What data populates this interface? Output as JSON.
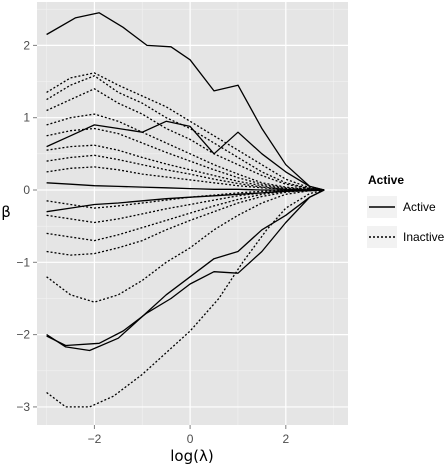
{
  "chart_data": {
    "type": "line",
    "xlabel": "log(λ)",
    "ylabel": "β",
    "xlim": [
      -3.2,
      3.3
    ],
    "ylim": [
      -3.25,
      2.6
    ],
    "x_ticks": [
      -2,
      0,
      2
    ],
    "x_tick_labels": [
      "−2",
      "0",
      "2"
    ],
    "y_ticks": [
      -3,
      -2,
      -1,
      0,
      1,
      2
    ],
    "y_tick_labels": [
      "−3",
      "−2",
      "−1",
      "0",
      "1",
      "2"
    ],
    "grid": true,
    "background": "#e5e5e5",
    "gridline_color": "#ffffff",
    "legend": {
      "title": "Active",
      "position": "right",
      "entries": [
        {
          "label": "Active",
          "linetype": "solid"
        },
        {
          "label": "Inactive",
          "linetype": "dotted"
        }
      ]
    },
    "series": [
      {
        "group": "Active",
        "x": [
          -3,
          -2.4,
          -1.9,
          -1.4,
          -0.9,
          -0.4,
          0,
          0.5,
          1,
          1.5,
          2,
          2.5,
          2.8
        ],
        "values": [
          2.15,
          2.38,
          2.45,
          2.25,
          2.0,
          1.98,
          1.8,
          1.37,
          1.45,
          0.85,
          0.35,
          0.05,
          0
        ]
      },
      {
        "group": "Active",
        "x": [
          -3,
          -2.5,
          -2,
          -1.5,
          -1,
          -0.5,
          0,
          0.5,
          1,
          1.5,
          2,
          2.5,
          2.8
        ],
        "values": [
          0.6,
          0.75,
          0.9,
          0.85,
          0.8,
          0.95,
          0.88,
          0.5,
          0.8,
          0.5,
          0.25,
          0.05,
          0
        ]
      },
      {
        "group": "Active",
        "x": [
          -3,
          -2.5,
          -2,
          -1.5,
          -1,
          -0.5,
          0,
          0.5,
          1,
          1.5,
          2,
          2.5,
          2.8
        ],
        "values": [
          -0.3,
          -0.25,
          -0.2,
          -0.18,
          -0.15,
          -0.12,
          -0.1,
          -0.08,
          -0.06,
          -0.04,
          -0.02,
          -0.01,
          0
        ]
      },
      {
        "group": "Active",
        "x": [
          -3,
          -2.5,
          -2,
          -1.5,
          -1,
          -0.5,
          0,
          0.5,
          1,
          1.5,
          2,
          2.5,
          2.8
        ],
        "values": [
          0.1,
          0.08,
          0.06,
          0.05,
          0.04,
          0.03,
          0.02,
          0.01,
          0.01,
          0.0,
          0.0,
          0.0,
          0
        ]
      },
      {
        "group": "Active",
        "x": [
          -3,
          -2.6,
          -2.1,
          -1.5,
          -1,
          -0.5,
          0,
          0.5,
          1,
          1.5,
          2,
          2.5,
          2.8
        ],
        "values": [
          -2.0,
          -2.17,
          -2.22,
          -2.05,
          -1.75,
          -1.45,
          -1.2,
          -0.95,
          -0.85,
          -0.55,
          -0.35,
          -0.1,
          0
        ]
      },
      {
        "group": "Active",
        "x": [
          -3,
          -2.6,
          -1.9,
          -1.4,
          -0.9,
          -0.4,
          0,
          0.5,
          1,
          1.5,
          2,
          2.5,
          2.8
        ],
        "values": [
          -2.02,
          -2.15,
          -2.12,
          -1.95,
          -1.7,
          -1.5,
          -1.3,
          -1.13,
          -1.15,
          -0.85,
          -0.45,
          -0.1,
          0
        ]
      },
      {
        "group": "Inactive",
        "x": [
          -3,
          -2.5,
          -2,
          -1.5,
          -1,
          -0.5,
          0,
          0.5,
          1,
          1.5,
          2,
          2.5,
          2.8
        ],
        "values": [
          1.35,
          1.55,
          1.62,
          1.45,
          1.3,
          1.15,
          0.95,
          0.75,
          0.55,
          0.35,
          0.15,
          0.03,
          0
        ]
      },
      {
        "group": "Inactive",
        "x": [
          -3,
          -2.5,
          -2,
          -1.5,
          -1,
          -0.5,
          0,
          0.5,
          1,
          1.5,
          2,
          2.5,
          2.8
        ],
        "values": [
          1.25,
          1.45,
          1.58,
          1.35,
          1.2,
          1.0,
          0.85,
          0.65,
          0.45,
          0.25,
          0.1,
          0.02,
          0
        ]
      },
      {
        "group": "Inactive",
        "x": [
          -3,
          -2.5,
          -2,
          -1.5,
          -1,
          -0.5,
          0,
          0.5,
          1,
          1.5,
          2,
          2.5,
          2.8
        ],
        "values": [
          1.1,
          1.25,
          1.4,
          1.2,
          1.05,
          0.85,
          0.7,
          0.5,
          0.35,
          0.2,
          0.08,
          0.02,
          0
        ]
      },
      {
        "group": "Inactive",
        "x": [
          -3,
          -2.5,
          -2,
          -1.5,
          -1,
          -0.5,
          0,
          0.5,
          1,
          1.5,
          2,
          2.5,
          2.8
        ],
        "values": [
          0.9,
          1.0,
          1.05,
          0.95,
          0.8,
          0.65,
          0.5,
          0.35,
          0.22,
          0.1,
          0.04,
          0.01,
          0
        ]
      },
      {
        "group": "Inactive",
        "x": [
          -3,
          -2.5,
          -2,
          -1.5,
          -1,
          -0.5,
          0,
          0.5,
          1,
          1.5,
          2,
          2.5,
          2.8
        ],
        "values": [
          0.75,
          0.82,
          0.85,
          0.78,
          0.65,
          0.52,
          0.4,
          0.28,
          0.17,
          0.08,
          0.03,
          0.01,
          0
        ]
      },
      {
        "group": "Inactive",
        "x": [
          -3,
          -2.5,
          -2,
          -1.5,
          -1,
          -0.5,
          0,
          0.5,
          1,
          1.5,
          2,
          2.5,
          2.8
        ],
        "values": [
          0.55,
          0.6,
          0.62,
          0.55,
          0.45,
          0.36,
          0.28,
          0.2,
          0.12,
          0.06,
          0.02,
          0.0,
          0
        ]
      },
      {
        "group": "Inactive",
        "x": [
          -3,
          -2.5,
          -2,
          -1.5,
          -1,
          -0.5,
          0,
          0.5,
          1,
          1.5,
          2,
          2.5,
          2.8
        ],
        "values": [
          0.4,
          0.45,
          0.48,
          0.42,
          0.35,
          0.28,
          0.22,
          0.15,
          0.09,
          0.04,
          0.01,
          0.0,
          0
        ]
      },
      {
        "group": "Inactive",
        "x": [
          -3,
          -2.5,
          -2,
          -1.5,
          -1,
          -0.5,
          0,
          0.5,
          1,
          1.5,
          2,
          2.5,
          2.8
        ],
        "values": [
          0.25,
          0.3,
          0.32,
          0.28,
          0.22,
          0.18,
          0.14,
          0.1,
          0.06,
          0.03,
          0.01,
          0.0,
          0
        ]
      },
      {
        "group": "Inactive",
        "x": [
          -3,
          -2.5,
          -2,
          -1.5,
          -1,
          -0.5,
          0,
          0.5,
          1,
          1.5,
          2,
          2.5,
          2.8
        ],
        "values": [
          -0.15,
          -0.2,
          -0.25,
          -0.22,
          -0.18,
          -0.14,
          -0.1,
          -0.07,
          -0.04,
          -0.02,
          -0.01,
          0.0,
          0
        ]
      },
      {
        "group": "Inactive",
        "x": [
          -3,
          -2.5,
          -2,
          -1.5,
          -1,
          -0.5,
          0,
          0.5,
          1,
          1.5,
          2,
          2.5,
          2.8
        ],
        "values": [
          -0.35,
          -0.4,
          -0.45,
          -0.4,
          -0.33,
          -0.26,
          -0.2,
          -0.14,
          -0.08,
          -0.04,
          -0.01,
          0.0,
          0
        ]
      },
      {
        "group": "Inactive",
        "x": [
          -3,
          -2.5,
          -2,
          -1.5,
          -1,
          -0.5,
          0,
          0.5,
          1,
          1.5,
          2,
          2.5,
          2.8
        ],
        "values": [
          -0.6,
          -0.65,
          -0.7,
          -0.62,
          -0.52,
          -0.42,
          -0.32,
          -0.22,
          -0.13,
          -0.06,
          -0.02,
          0.0,
          0
        ]
      },
      {
        "group": "Inactive",
        "x": [
          -3,
          -2.5,
          -2,
          -1.5,
          -1,
          -0.5,
          0,
          0.5,
          1,
          1.5,
          2,
          2.5,
          2.8
        ],
        "values": [
          -0.85,
          -0.9,
          -0.88,
          -0.8,
          -0.7,
          -0.55,
          -0.42,
          -0.3,
          -0.18,
          -0.09,
          -0.03,
          0.0,
          0
        ]
      },
      {
        "group": "Inactive",
        "x": [
          -3,
          -2.5,
          -2,
          -1.5,
          -1,
          -0.5,
          0,
          0.5,
          1,
          1.5,
          2,
          2.5,
          2.8
        ],
        "values": [
          -1.2,
          -1.45,
          -1.55,
          -1.45,
          -1.25,
          -1.0,
          -0.8,
          -0.55,
          -0.35,
          -0.18,
          -0.06,
          -0.01,
          0
        ]
      },
      {
        "group": "Inactive",
        "x": [
          -3,
          -2.6,
          -2.1,
          -1.6,
          -1,
          -0.5,
          0,
          0.6,
          1.1,
          1.6,
          2,
          2.5,
          2.8
        ],
        "values": [
          -2.8,
          -3.0,
          -3.0,
          -2.85,
          -2.55,
          -2.25,
          -1.95,
          -1.5,
          -1.0,
          -0.55,
          -0.25,
          -0.05,
          0
        ]
      }
    ]
  }
}
